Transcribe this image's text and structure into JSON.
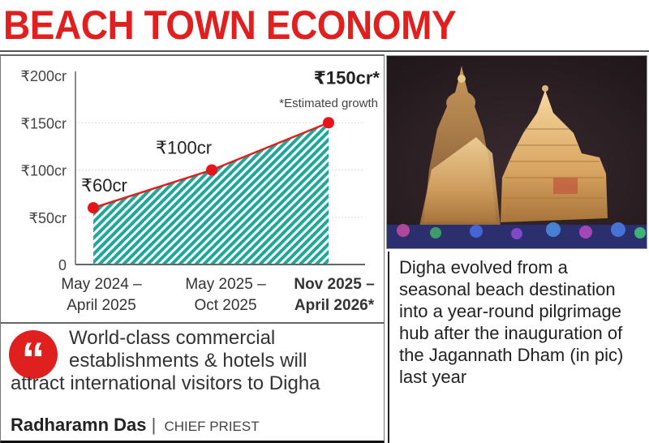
{
  "header": {
    "title": "BEACH TOWN ECONOMY"
  },
  "chart_data": {
    "type": "area",
    "categories": [
      "May 2024 – April 2025",
      "May 2025 – Oct 2025",
      "Nov 2025 – April 2026*"
    ],
    "category_lines": [
      [
        "May 2024 –",
        "April 2025"
      ],
      [
        "May 2025 –",
        "Oct 2025"
      ],
      [
        "Nov 2025 –",
        "April 2026*"
      ]
    ],
    "values": [
      60,
      100,
      150
    ],
    "value_unit": "₹ crore",
    "data_labels": [
      "₹60cr",
      "₹100cr",
      "₹150cr*"
    ],
    "y_ticks": [
      {
        "v": 0,
        "label": "0"
      },
      {
        "v": 50,
        "label": "₹50cr"
      },
      {
        "v": 100,
        "label": "₹100cr"
      },
      {
        "v": 150,
        "label": "₹150cr"
      },
      {
        "v": 200,
        "label": "₹200cr"
      }
    ],
    "ylim": [
      0,
      200
    ],
    "annotation": "*Estimated growth",
    "grid": true,
    "colors": {
      "line": "#e0201f",
      "marker": "#e8141c",
      "fill": "#1fa89a"
    }
  },
  "photo": {
    "description_icon": "temple-photo"
  },
  "caption": {
    "text": "Digha evolved from a seasonal beach destination into a year-round pilgrimage hub after the inauguration of the Jagannath Dham (in pic) last year"
  },
  "quote": {
    "line1": "World-class commercial",
    "line2": "establishments & hotels will",
    "line3": "attract international visitors to Digha",
    "speaker": "Radharamn Das",
    "separator": "|",
    "role": "CHIEF PRIEST"
  }
}
